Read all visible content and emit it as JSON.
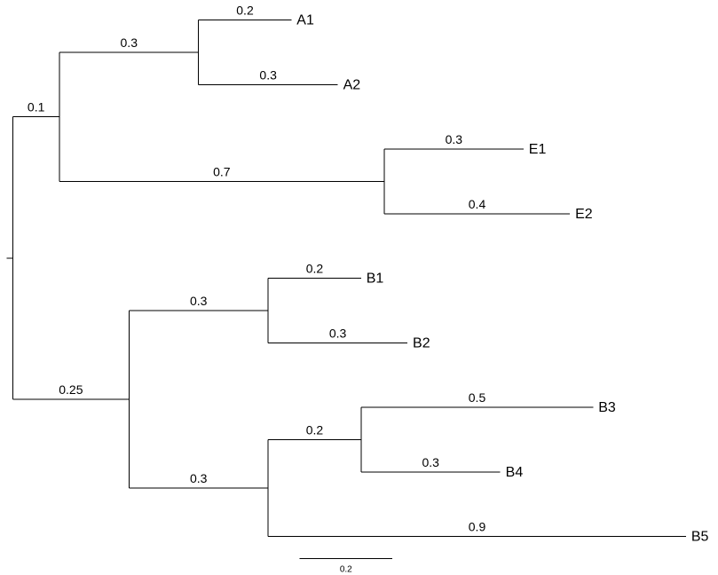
{
  "tree": {
    "root_branch_length": 0.05,
    "nodes": [
      {
        "id": "root",
        "parent": null,
        "length": 0
      },
      {
        "id": "cladeAE",
        "parent": "root",
        "length": 0.1,
        "label": "0.1"
      },
      {
        "id": "cladeA",
        "parent": "cladeAE",
        "length": 0.3,
        "label": "0.3"
      },
      {
        "id": "A1",
        "parent": "cladeA",
        "length": 0.2,
        "label": "0.2",
        "leaf": "A1"
      },
      {
        "id": "A2",
        "parent": "cladeA",
        "length": 0.3,
        "label": "0.3",
        "leaf": "A2"
      },
      {
        "id": "cladeE",
        "parent": "cladeAE",
        "length": 0.7,
        "label": "0.7"
      },
      {
        "id": "E1",
        "parent": "cladeE",
        "length": 0.3,
        "label": "0.3",
        "leaf": "E1"
      },
      {
        "id": "E2",
        "parent": "cladeE",
        "length": 0.4,
        "label": "0.4",
        "leaf": "E2"
      },
      {
        "id": "cladeB",
        "parent": "root",
        "length": 0.25,
        "label": "0.25"
      },
      {
        "id": "cladeB12",
        "parent": "cladeB",
        "length": 0.3,
        "label": "0.3"
      },
      {
        "id": "B1",
        "parent": "cladeB12",
        "length": 0.2,
        "label": "0.2",
        "leaf": "B1"
      },
      {
        "id": "B2",
        "parent": "cladeB12",
        "length": 0.3,
        "label": "0.3",
        "leaf": "B2"
      },
      {
        "id": "cladeB345",
        "parent": "cladeB",
        "length": 0.3,
        "label": "0.3"
      },
      {
        "id": "cladeB34",
        "parent": "cladeB345",
        "length": 0.2,
        "label": "0.2"
      },
      {
        "id": "B3",
        "parent": "cladeB34",
        "length": 0.5,
        "label": "0.5",
        "leaf": "B3"
      },
      {
        "id": "B4",
        "parent": "cladeB34",
        "length": 0.3,
        "label": "0.3",
        "leaf": "B4"
      },
      {
        "id": "B5",
        "parent": "cladeB345",
        "length": 0.9,
        "label": "0.9",
        "leaf": "B5"
      }
    ],
    "leaf_order": [
      "A1",
      "A2",
      "E1",
      "E2",
      "B1",
      "B2",
      "B3",
      "B4",
      "B5"
    ]
  },
  "scale_bar": {
    "length": 0.2,
    "label": "0.2"
  }
}
